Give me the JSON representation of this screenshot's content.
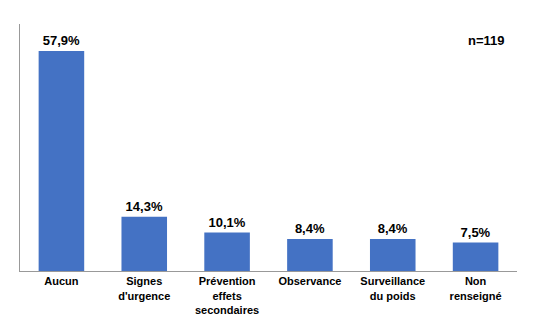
{
  "chart_data": {
    "type": "bar",
    "categories": [
      "Aucun",
      "Signes\nd'urgence",
      "Prévention\neffets\nsecondaires",
      "Observance",
      "Surveillance\ndu poids",
      "Non\nrenseigné"
    ],
    "values": [
      57.9,
      14.3,
      10.1,
      8.4,
      8.4,
      7.5
    ],
    "value_labels": [
      "57,9%",
      "14,3%",
      "10,1%",
      "8,4%",
      "8,4%",
      "7,5%"
    ],
    "color": "#4472C4",
    "ylim": [
      0,
      65
    ],
    "annotation": "n=119",
    "data_labels": true,
    "tick_labels": "x",
    "grid": false
  }
}
